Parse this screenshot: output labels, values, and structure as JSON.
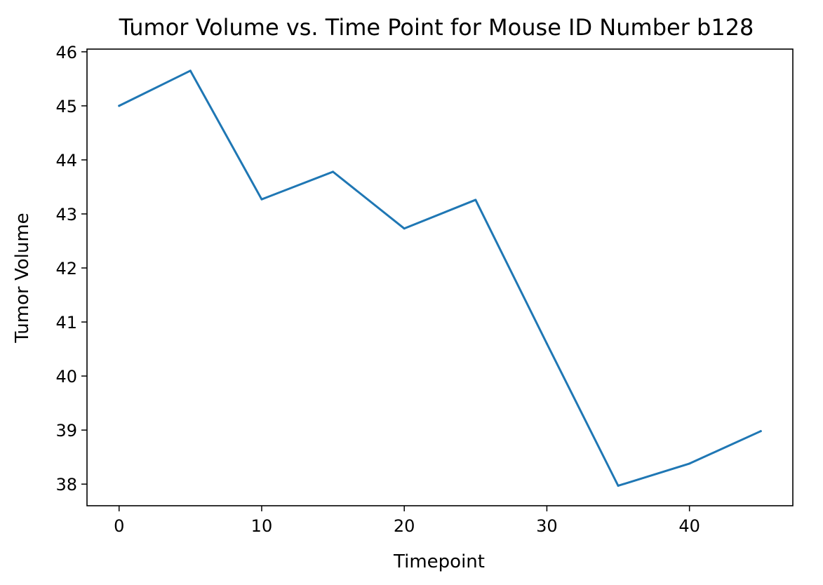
{
  "chart_data": {
    "type": "line",
    "title": "Tumor Volume vs. Time Point for Mouse ID Number b128",
    "xlabel": "Timepoint",
    "ylabel": "Tumor Volume",
    "xlim": [
      -2.25,
      47.25
    ],
    "ylim": [
      37.6,
      46.05
    ],
    "xticks": [
      0,
      10,
      20,
      30,
      40
    ],
    "yticks": [
      38,
      39,
      40,
      41,
      42,
      43,
      44,
      45,
      46
    ],
    "grid": false,
    "series": [
      {
        "color": "#1f77b4",
        "x": [
          0,
          5,
          10,
          15,
          20,
          25,
          30,
          35,
          40,
          45
        ],
        "y": [
          45.0,
          45.65,
          43.27,
          43.78,
          42.73,
          43.26,
          40.6,
          37.97,
          38.38,
          38.98
        ]
      }
    ]
  }
}
